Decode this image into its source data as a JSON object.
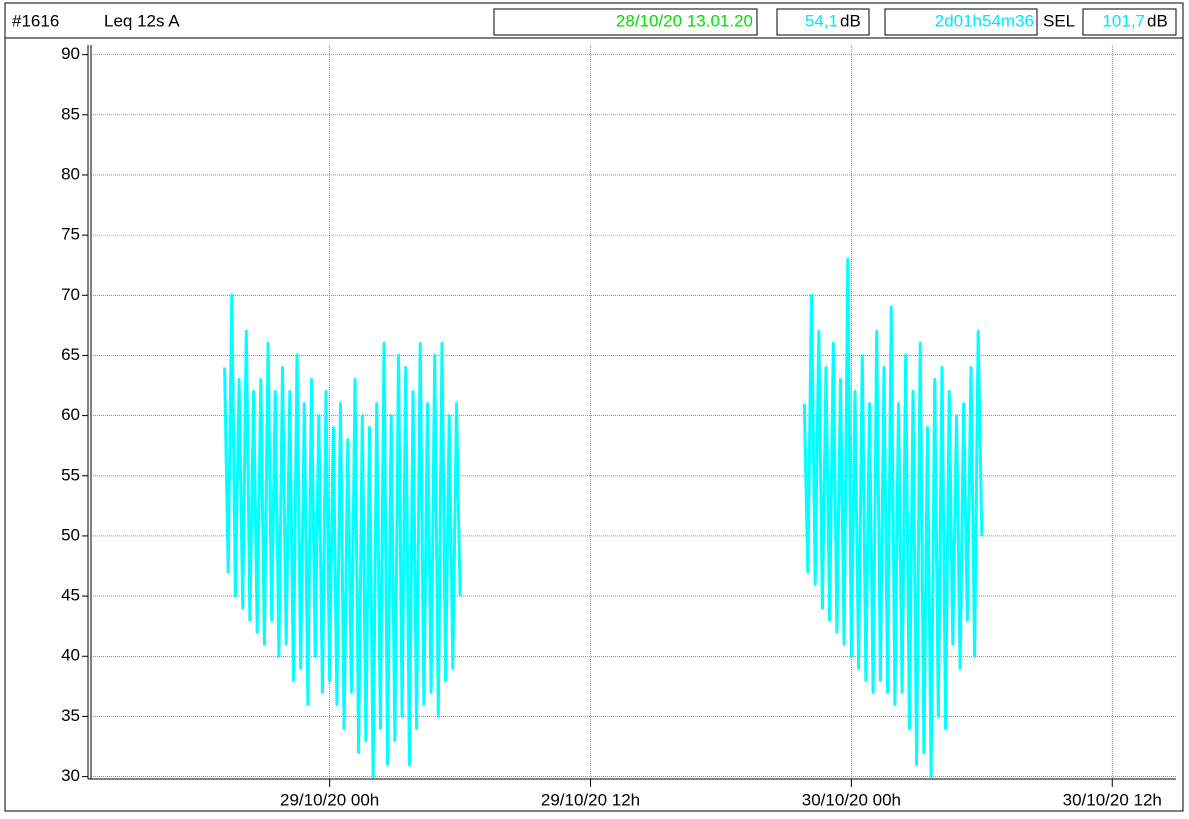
{
  "header": {
    "id": "#1616",
    "mode": "Leq 12s  A",
    "start": "28/10/20 13.01.20",
    "leq": "54,1",
    "leq_unit": "dB",
    "duration": "2d01h54m36",
    "sel_label": "SEL",
    "sel": "101,7",
    "sel_unit": "dB"
  },
  "chart_data": {
    "type": "line",
    "xlim": [
      "2020-10-28T13:01:20",
      "2020-10-30T14:55:56"
    ],
    "xticks": [
      {
        "value": "2020-10-29T00:00",
        "label": "29/10/20 00h"
      },
      {
        "value": "2020-10-29T12:00",
        "label": "29/10/20 12h"
      },
      {
        "value": "2020-10-30T00:00",
        "label": "30/10/20 00h"
      },
      {
        "value": "2020-10-30T12:00",
        "label": "30/10/20 12h"
      }
    ],
    "ylim": [
      29.8,
      90.8
    ],
    "yticks": [
      30,
      35,
      40,
      45,
      50,
      55,
      60,
      65,
      70,
      75,
      80,
      85,
      90
    ],
    "grid": true,
    "x": [
      "2020-10-28T19:10",
      "2020-10-28T19:20",
      "2020-10-28T19:30",
      "2020-10-28T19:40",
      "2020-10-28T19:50",
      "2020-10-28T20:00",
      "2020-10-28T20:10",
      "2020-10-28T20:20",
      "2020-10-28T20:30",
      "2020-10-28T20:40",
      "2020-10-28T20:50",
      "2020-10-28T21:00",
      "2020-10-28T21:10",
      "2020-10-28T21:20",
      "2020-10-28T21:30",
      "2020-10-28T21:40",
      "2020-10-28T21:50",
      "2020-10-28T22:00",
      "2020-10-28T22:10",
      "2020-10-28T22:20",
      "2020-10-28T22:30",
      "2020-10-28T22:40",
      "2020-10-28T22:50",
      "2020-10-28T23:00",
      "2020-10-28T23:10",
      "2020-10-28T23:20",
      "2020-10-28T23:30",
      "2020-10-28T23:40",
      "2020-10-28T23:50",
      "2020-10-29T00:00",
      "2020-10-29T00:10",
      "2020-10-29T00:20",
      "2020-10-29T00:30",
      "2020-10-29T00:40",
      "2020-10-29T00:50",
      "2020-10-29T01:00",
      "2020-10-29T01:10",
      "2020-10-29T01:20",
      "2020-10-29T01:30",
      "2020-10-29T01:40",
      "2020-10-29T01:50",
      "2020-10-29T02:00",
      "2020-10-29T02:10",
      "2020-10-29T02:20",
      "2020-10-29T02:30",
      "2020-10-29T02:40",
      "2020-10-29T02:50",
      "2020-10-29T03:00",
      "2020-10-29T03:10",
      "2020-10-29T03:20",
      "2020-10-29T03:30",
      "2020-10-29T03:40",
      "2020-10-29T03:50",
      "2020-10-29T04:00",
      "2020-10-29T04:10",
      "2020-10-29T04:20",
      "2020-10-29T04:30",
      "2020-10-29T04:40",
      "2020-10-29T04:50",
      "2020-10-29T05:00",
      "2020-10-29T05:10",
      "2020-10-29T05:20",
      "2020-10-29T05:30",
      "2020-10-29T05:40",
      "2020-10-29T05:50",
      "2020-10-29T06:00",
      "2020-10-29T12:00",
      "2020-10-29T21:50",
      "2020-10-29T22:00",
      "2020-10-29T22:10",
      "2020-10-29T22:20",
      "2020-10-29T22:30",
      "2020-10-29T22:40",
      "2020-10-29T22:50",
      "2020-10-29T23:00",
      "2020-10-29T23:10",
      "2020-10-29T23:20",
      "2020-10-29T23:30",
      "2020-10-29T23:40",
      "2020-10-29T23:50",
      "2020-10-30T00:00",
      "2020-10-30T00:10",
      "2020-10-30T00:20",
      "2020-10-30T00:30",
      "2020-10-30T00:40",
      "2020-10-30T00:50",
      "2020-10-30T01:00",
      "2020-10-30T01:10",
      "2020-10-30T01:20",
      "2020-10-30T01:30",
      "2020-10-30T01:40",
      "2020-10-30T01:50",
      "2020-10-30T02:00",
      "2020-10-30T02:10",
      "2020-10-30T02:20",
      "2020-10-30T02:30",
      "2020-10-30T02:40",
      "2020-10-30T02:50",
      "2020-10-30T03:00",
      "2020-10-30T03:10",
      "2020-10-30T03:20",
      "2020-10-30T03:30",
      "2020-10-30T03:40",
      "2020-10-30T03:50",
      "2020-10-30T04:00",
      "2020-10-30T04:10",
      "2020-10-30T04:20",
      "2020-10-30T04:30",
      "2020-10-30T04:40",
      "2020-10-30T04:50",
      "2020-10-30T05:00",
      "2020-10-30T05:10",
      "2020-10-30T05:20",
      "2020-10-30T05:30",
      "2020-10-30T05:40",
      "2020-10-30T05:50",
      "2020-10-30T06:00"
    ],
    "series": [
      {
        "color": "#00ffff",
        "values": [
          64,
          47,
          70,
          45,
          63,
          44,
          67,
          43,
          62,
          42,
          63,
          41,
          66,
          43,
          62,
          40,
          64,
          41,
          62,
          38,
          65,
          39,
          61,
          36,
          63,
          40,
          60,
          37,
          62,
          38,
          59,
          36,
          61,
          34,
          58,
          37,
          63,
          32,
          60,
          33,
          59,
          30,
          61,
          34,
          66,
          31,
          60,
          33,
          65,
          35,
          64,
          31,
          62,
          34,
          66,
          36,
          61,
          37,
          65,
          35,
          66,
          38,
          60,
          39,
          61,
          45,
          null,
          61,
          47,
          70,
          46,
          67,
          44,
          64,
          43,
          66,
          42,
          63,
          41,
          73,
          40,
          62,
          39,
          65,
          38,
          61,
          37,
          67,
          38,
          64,
          37,
          69,
          36,
          61,
          37,
          65,
          34,
          62,
          31,
          66,
          32,
          59,
          30,
          63,
          35,
          64,
          34,
          62,
          41,
          60,
          39,
          61,
          43,
          64,
          40,
          67,
          50
        ]
      }
    ]
  }
}
